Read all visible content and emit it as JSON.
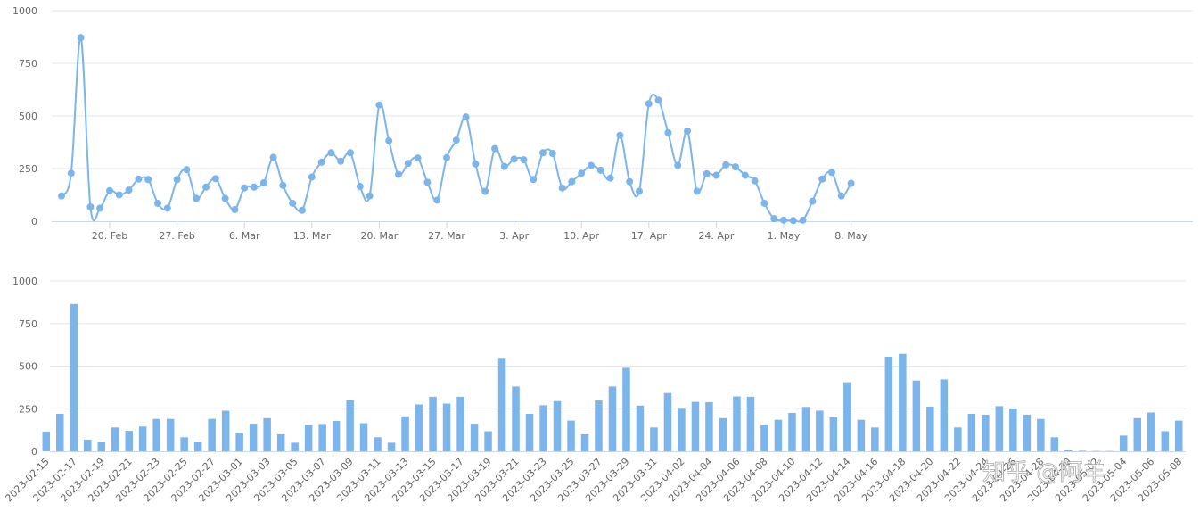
{
  "colors": {
    "series": "#7cb5ec",
    "grid": "#e6e6e6",
    "axis": "#ccd6eb",
    "text": "#666666"
  },
  "watermark": "知乎 @阿羊",
  "chart_data": [
    {
      "type": "line",
      "x_start": "2023-02-15",
      "x_end": "2023-05-09",
      "x_tick_labels": [
        "20. Feb",
        "27. Feb",
        "6. Mar",
        "13. Mar",
        "20. Mar",
        "27. Mar",
        "3. Apr",
        "10. Apr",
        "17. Apr",
        "24. Apr",
        "1. May",
        "8. May"
      ],
      "ylim": [
        0,
        1000
      ],
      "y_ticks": [
        0,
        250,
        500,
        750,
        1000
      ],
      "grid": true,
      "values": [
        120,
        228,
        872,
        68,
        62,
        145,
        125,
        148,
        200,
        198,
        85,
        62,
        198,
        245,
        108,
        162,
        202,
        108,
        55,
        158,
        162,
        182,
        303,
        170,
        85,
        52,
        210,
        280,
        325,
        285,
        325,
        165,
        120,
        552,
        382,
        222,
        275,
        300,
        185,
        100,
        302,
        385,
        495,
        272,
        142,
        345,
        260,
        295,
        292,
        198,
        325,
        322,
        158,
        188,
        228,
        265,
        242,
        205,
        408,
        188,
        142,
        558,
        575,
        420,
        265,
        428,
        142,
        225,
        218,
        268,
        258,
        218,
        192,
        85,
        12,
        5,
        3,
        5,
        95,
        200,
        232,
        120,
        180
      ]
    },
    {
      "type": "bar",
      "categories": [
        "2023-02-15",
        "2023-02-16",
        "2023-02-17",
        "2023-02-18",
        "2023-02-19",
        "2023-02-20",
        "2023-02-21",
        "2023-02-22",
        "2023-02-23",
        "2023-02-24",
        "2023-02-25",
        "2023-02-26",
        "2023-02-27",
        "2023-02-28",
        "2023-03-01",
        "2023-03-02",
        "2023-03-03",
        "2023-03-04",
        "2023-03-05",
        "2023-03-06",
        "2023-03-07",
        "2023-03-08",
        "2023-03-09",
        "2023-03-10",
        "2023-03-11",
        "2023-03-12",
        "2023-03-13",
        "2023-03-14",
        "2023-03-15",
        "2023-03-16",
        "2023-03-17",
        "2023-03-18",
        "2023-03-19",
        "2023-03-20",
        "2023-03-21",
        "2023-03-22",
        "2023-03-23",
        "2023-03-24",
        "2023-03-25",
        "2023-03-26",
        "2023-03-27",
        "2023-03-28",
        "2023-03-29",
        "2023-03-30",
        "2023-03-31",
        "2023-04-01",
        "2023-04-02",
        "2023-04-03",
        "2023-04-04",
        "2023-04-05",
        "2023-04-06",
        "2023-04-07",
        "2023-04-08",
        "2023-04-09",
        "2023-04-10",
        "2023-04-11",
        "2023-04-12",
        "2023-04-13",
        "2023-04-14",
        "2023-04-15",
        "2023-04-16",
        "2023-04-17",
        "2023-04-18",
        "2023-04-19",
        "2023-04-20",
        "2023-04-21",
        "2023-04-22",
        "2023-04-23",
        "2023-04-24",
        "2023-04-25",
        "2023-04-26",
        "2023-04-27",
        "2023-04-28",
        "2023-04-29",
        "2023-04-30",
        "2023-05-01",
        "2023-05-02",
        "2023-05-03",
        "2023-05-04",
        "2023-05-05",
        "2023-05-06",
        "2023-05-07",
        "2023-05-08"
      ],
      "x_tick_labels": [
        "2023-02-15",
        "2023-02-17",
        "2023-02-19",
        "2023-02-21",
        "2023-02-23",
        "2023-02-25",
        "2023-02-27",
        "2023-03-01",
        "2023-03-03",
        "2023-03-05",
        "2023-03-07",
        "2023-03-09",
        "2023-03-11",
        "2023-03-13",
        "2023-03-15",
        "2023-03-17",
        "2023-03-19",
        "2023-03-21",
        "2023-03-23",
        "2023-03-25",
        "2023-03-27",
        "2023-03-29",
        "2023-03-31",
        "2023-04-02",
        "2023-04-04",
        "2023-04-06",
        "2023-04-08",
        "2023-04-10",
        "2023-04-12",
        "2023-04-14",
        "2023-04-16",
        "2023-04-18",
        "2023-04-20",
        "2023-04-22",
        "2023-04-24",
        "2023-04-26",
        "2023-04-28",
        "2023-04-30",
        "2023-05-02",
        "2023-05-04",
        "2023-05-06",
        "2023-05-08"
      ],
      "ylim": [
        0,
        1000
      ],
      "y_ticks": [
        0,
        250,
        500,
        750,
        1000
      ],
      "grid": true,
      "values": [
        115,
        220,
        865,
        68,
        55,
        140,
        120,
        145,
        190,
        190,
        82,
        55,
        190,
        238,
        105,
        162,
        195,
        100,
        50,
        155,
        160,
        178,
        300,
        165,
        82,
        50,
        205,
        275,
        320,
        280,
        320,
        162,
        118,
        548,
        380,
        220,
        270,
        295,
        180,
        100,
        298,
        380,
        490,
        268,
        140,
        342,
        255,
        290,
        288,
        195,
        322,
        320,
        155,
        185,
        225,
        260,
        238,
        200,
        405,
        185,
        140,
        555,
        572,
        415,
        262,
        422,
        140,
        220,
        215,
        265,
        252,
        215,
        190,
        82,
        8,
        3,
        2,
        2,
        92,
        195,
        228,
        118,
        180
      ]
    }
  ]
}
